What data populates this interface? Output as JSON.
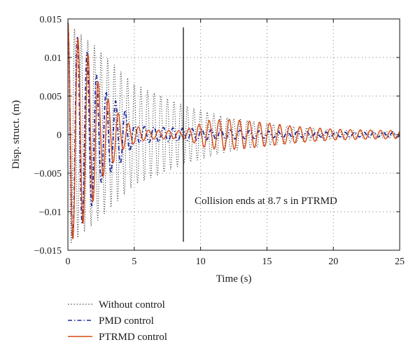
{
  "chart_data": {
    "type": "line",
    "xlabel": "Time (s)",
    "ylabel": "Disp. struct. (m)",
    "xlim": [
      0,
      25
    ],
    "ylim": [
      -0.015,
      0.015
    ],
    "xticks": [
      0,
      5,
      10,
      15,
      20,
      25
    ],
    "xtick_labels": [
      "0",
      "5",
      "10",
      "15",
      "20",
      "25"
    ],
    "yticks": [
      -0.015,
      -0.01,
      -0.005,
      0,
      0.005,
      0.01,
      0.015
    ],
    "ytick_labels": [
      "−0.015",
      "−0.01",
      "−0.005",
      "0",
      "0.005",
      "0.01",
      "0.015"
    ],
    "grid": "dotted",
    "legend_position": "below-left",
    "annotation": {
      "text": "Collision ends at 8.7 s in PTRMD",
      "vline_x": 8.7
    },
    "series": [
      {
        "name": "Without control",
        "style": "dotted",
        "color": "#222222",
        "envelope": [
          {
            "t": 0,
            "amp": 0.0145
          },
          {
            "t": 2,
            "amp": 0.0115
          },
          {
            "t": 5,
            "amp": 0.0065
          },
          {
            "t": 8.7,
            "amp": 0.0038
          },
          {
            "t": 12,
            "amp": 0.0022
          },
          {
            "t": 16,
            "amp": 0.0012
          },
          {
            "t": 20,
            "amp": 0.0006
          },
          {
            "t": 25,
            "amp": 0.0004
          }
        ],
        "period_s": 0.5
      },
      {
        "name": "PMD control",
        "style": "dash-dot",
        "color": "#1f2a9e",
        "envelope": [
          {
            "t": 0,
            "amp": 0.0145
          },
          {
            "t": 1.5,
            "amp": 0.0105
          },
          {
            "t": 2.5,
            "amp": 0.0062
          },
          {
            "t": 4.3,
            "amp": 0.0032
          },
          {
            "t": 5,
            "amp": 0.0011
          },
          {
            "t": 8.7,
            "amp": 0.0008
          },
          {
            "t": 12,
            "amp": 0.0006
          },
          {
            "t": 16,
            "amp": 0.0004
          },
          {
            "t": 20,
            "amp": 0.0003
          },
          {
            "t": 25,
            "amp": 0.0003
          }
        ],
        "period_s": 0.72
      },
      {
        "name": "PTRMD control",
        "style": "solid",
        "color": "#d84a14",
        "envelope": [
          {
            "t": 0,
            "amp": 0.0145
          },
          {
            "t": 1.5,
            "amp": 0.0105
          },
          {
            "t": 2.5,
            "amp": 0.0058
          },
          {
            "t": 4.3,
            "amp": 0.0016
          },
          {
            "t": 6,
            "amp": 0.0006
          },
          {
            "t": 8.7,
            "amp": 0.0005
          },
          {
            "t": 10.5,
            "amp": 0.0018
          },
          {
            "t": 12,
            "amp": 0.002
          },
          {
            "t": 14,
            "amp": 0.0017
          },
          {
            "t": 17,
            "amp": 0.0011
          },
          {
            "t": 20,
            "amp": 0.0007
          },
          {
            "t": 25,
            "amp": 0.0005
          }
        ],
        "period_s": 0.76
      }
    ]
  }
}
